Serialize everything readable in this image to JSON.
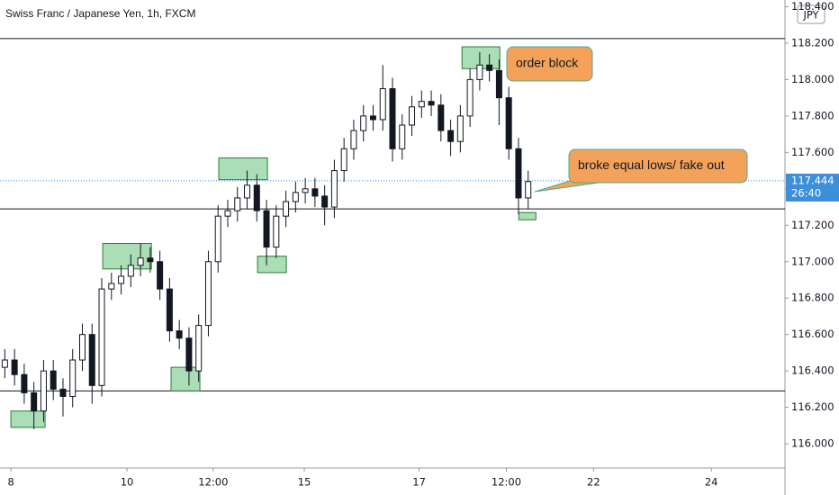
{
  "chart_data": {
    "type": "candlestick",
    "title": "Swiss Franc / Japanese Yen, 1h, FXCM",
    "currency": "JPY",
    "x": [
      2,
      6,
      10,
      14,
      18,
      22,
      26,
      30,
      34,
      38,
      42,
      46,
      50,
      54,
      58,
      62,
      66,
      70,
      74,
      78,
      82,
      86,
      90,
      94,
      98,
      102,
      106,
      110,
      114,
      118,
      122,
      126,
      130,
      134,
      138,
      142,
      146,
      150,
      154,
      158,
      162,
      166,
      170,
      174,
      178,
      182,
      186,
      190,
      194,
      198,
      202,
      206,
      210,
      214,
      218
    ],
    "open": [
      116.42,
      116.46,
      116.38,
      116.28,
      116.18,
      116.4,
      116.3,
      116.26,
      116.46,
      116.6,
      116.32,
      116.85,
      116.88,
      116.92,
      116.98,
      117.02,
      117.0,
      116.85,
      116.62,
      116.58,
      116.4,
      116.65,
      117.0,
      117.25,
      117.28,
      117.35,
      117.42,
      117.28,
      117.08,
      117.25,
      117.33,
      117.38,
      117.4,
      117.36,
      117.3,
      117.5,
      117.62,
      117.72,
      117.8,
      117.78,
      117.95,
      117.62,
      117.75,
      117.85,
      117.88,
      117.86,
      117.72,
      117.66,
      117.8,
      118.0,
      118.08,
      118.05,
      117.9,
      117.62,
      117.35
    ],
    "high": [
      116.52,
      116.52,
      116.44,
      116.34,
      116.46,
      116.46,
      116.36,
      116.52,
      116.66,
      116.66,
      116.91,
      116.94,
      116.98,
      117.04,
      117.1,
      117.08,
      117.06,
      116.91,
      116.68,
      116.64,
      116.71,
      117.06,
      117.31,
      117.34,
      117.41,
      117.5,
      117.48,
      117.34,
      117.31,
      117.39,
      117.44,
      117.46,
      117.46,
      117.42,
      117.56,
      117.68,
      117.78,
      117.86,
      117.86,
      118.08,
      118.01,
      117.81,
      117.91,
      117.94,
      117.94,
      117.92,
      117.78,
      117.86,
      118.06,
      118.15,
      118.14,
      118.11,
      117.96,
      117.68,
      117.5
    ],
    "low": [
      116.36,
      116.32,
      116.22,
      116.08,
      116.12,
      116.24,
      116.15,
      116.2,
      116.4,
      116.22,
      116.26,
      116.79,
      116.82,
      116.86,
      116.92,
      116.94,
      116.79,
      116.56,
      116.52,
      116.32,
      116.34,
      116.59,
      116.94,
      117.19,
      117.22,
      117.29,
      117.22,
      116.98,
      117.02,
      117.19,
      117.27,
      117.32,
      117.3,
      117.2,
      117.24,
      117.44,
      117.56,
      117.66,
      117.72,
      117.72,
      117.55,
      117.56,
      117.69,
      117.79,
      117.8,
      117.66,
      117.58,
      117.6,
      117.74,
      117.94,
      117.99,
      117.75,
      117.56,
      117.26,
      117.29
    ],
    "close": [
      116.46,
      116.38,
      116.28,
      116.18,
      116.4,
      116.3,
      116.26,
      116.46,
      116.6,
      116.32,
      116.85,
      116.88,
      116.92,
      116.98,
      117.02,
      117.0,
      116.85,
      116.62,
      116.58,
      116.4,
      116.65,
      117.0,
      117.25,
      117.28,
      117.35,
      117.42,
      117.28,
      117.08,
      117.25,
      117.33,
      117.38,
      117.4,
      117.36,
      117.3,
      117.5,
      117.62,
      117.72,
      117.8,
      117.78,
      117.95,
      117.62,
      117.75,
      117.85,
      117.88,
      117.86,
      117.72,
      117.66,
      117.8,
      118.0,
      118.08,
      118.05,
      117.9,
      117.62,
      117.35,
      117.44
    ],
    "up_color": "#ffffff",
    "down_color": "#131722",
    "xlim": [
      0,
      324
    ],
    "xticks": [
      {
        "value": 4.5,
        "label": "8"
      },
      {
        "value": 52.4,
        "label": "10"
      },
      {
        "value": 88,
        "label": "12:00"
      },
      {
        "value": 125.6,
        "label": "15"
      },
      {
        "value": 173,
        "label": "17"
      },
      {
        "value": 209,
        "label": "12:00"
      },
      {
        "value": 245,
        "label": "22"
      },
      {
        "value": 293.6,
        "label": "24"
      }
    ],
    "ylim": [
      115.867,
      118.437
    ],
    "yticks": [
      {
        "value": 116.0,
        "label": "116.000"
      },
      {
        "value": 116.2,
        "label": "116.200"
      },
      {
        "value": 116.4,
        "label": "116.400"
      },
      {
        "value": 116.6,
        "label": "116.600"
      },
      {
        "value": 116.8,
        "label": "116.800"
      },
      {
        "value": 117.0,
        "label": "117.000"
      },
      {
        "value": 117.2,
        "label": "117.200"
      },
      {
        "value": 117.4,
        "label": "117.400"
      },
      {
        "value": 117.6,
        "label": "117.600"
      },
      {
        "value": 117.8,
        "label": "117.800"
      },
      {
        "value": 118.0,
        "label": "118.000"
      },
      {
        "value": 118.2,
        "label": "118.200"
      },
      {
        "value": 118.4,
        "label": "118.400"
      }
    ],
    "last_price": 117.444,
    "countdown": "26:40",
    "levels": [
      118.225,
      117.29,
      116.29
    ],
    "zone_color": "#8fd19e",
    "zones": [
      {
        "x": [
          4.5,
          18.6
        ],
        "y": [
          116.09,
          116.18
        ]
      },
      {
        "x": [
          42.4,
          62.5
        ],
        "y": [
          116.96,
          117.1
        ]
      },
      {
        "x": [
          70.6,
          82.5
        ],
        "y": [
          116.29,
          116.42
        ]
      },
      {
        "x": [
          90.3,
          110.4
        ],
        "y": [
          117.45,
          117.57
        ]
      },
      {
        "x": [
          106.3,
          118.2
        ],
        "y": [
          116.94,
          117.03
        ]
      },
      {
        "x": [
          190.7,
          206.3
        ],
        "y": [
          118.06,
          118.18
        ]
      },
      {
        "x": [
          214.1,
          221.2
        ],
        "y": [
          117.23,
          117.27
        ]
      }
    ],
    "annotations": [
      {
        "text": "order block"
      },
      {
        "text": "broke equal lows/ fake out"
      }
    ]
  }
}
